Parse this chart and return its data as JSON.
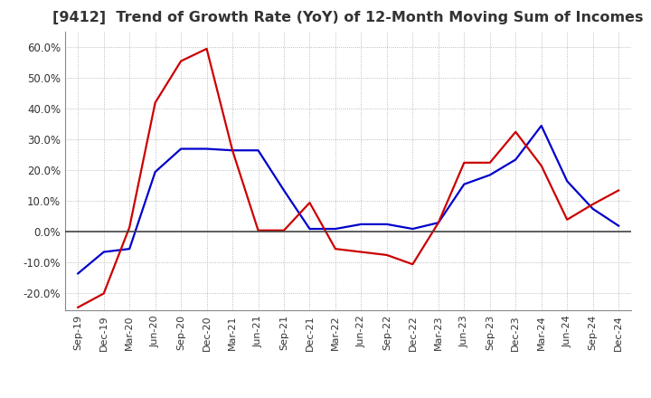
{
  "title": "[9412]  Trend of Growth Rate (YoY) of 12-Month Moving Sum of Incomes",
  "title_fontsize": 11.5,
  "ylim": [
    -0.255,
    0.65
  ],
  "yticks": [
    -0.2,
    -0.1,
    0.0,
    0.1,
    0.2,
    0.3,
    0.4,
    0.5,
    0.6
  ],
  "background_color": "#ffffff",
  "grid_color": "#aaaaaa",
  "x_labels": [
    "Sep-19",
    "Dec-19",
    "Mar-20",
    "Jun-20",
    "Sep-20",
    "Dec-20",
    "Mar-21",
    "Jun-21",
    "Sep-21",
    "Dec-21",
    "Mar-22",
    "Jun-22",
    "Sep-22",
    "Dec-22",
    "Mar-23",
    "Jun-23",
    "Sep-23",
    "Dec-23",
    "Mar-24",
    "Jun-24",
    "Sep-24",
    "Dec-24"
  ],
  "ordinary_income": [
    -0.135,
    -0.065,
    -0.055,
    0.195,
    0.27,
    0.27,
    0.265,
    0.265,
    0.135,
    0.01,
    0.01,
    0.025,
    0.025,
    0.01,
    0.03,
    0.155,
    0.185,
    0.235,
    0.345,
    0.165,
    0.075,
    0.02
  ],
  "net_income": [
    -0.245,
    -0.2,
    0.015,
    0.42,
    0.555,
    0.595,
    0.265,
    0.005,
    0.005,
    0.095,
    -0.055,
    -0.065,
    -0.075,
    -0.105,
    0.03,
    0.225,
    0.225,
    0.325,
    0.215,
    0.04,
    0.09,
    0.135
  ],
  "ordinary_color": "#0000cc",
  "net_color": "#cc0000",
  "line_width": 1.6
}
